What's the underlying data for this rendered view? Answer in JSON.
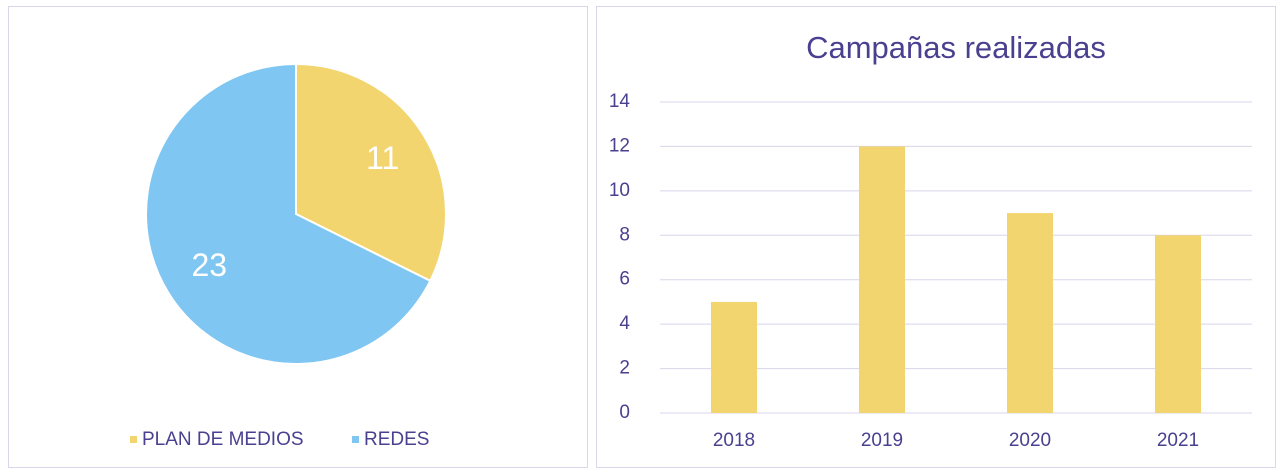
{
  "chart_data": [
    {
      "type": "pie",
      "categories": [
        "PLAN DE MEDIOS",
        "REDES"
      ],
      "values": [
        11,
        23
      ],
      "colors": [
        "#f2d56e",
        "#7fc6f2"
      ]
    },
    {
      "type": "bar",
      "title": "Campañas realizadas",
      "categories": [
        "2018",
        "2019",
        "2020",
        "2021"
      ],
      "values": [
        5,
        12,
        9,
        8
      ],
      "color": "#f2d56e",
      "ylim": [
        0,
        14
      ],
      "yticks": [
        0,
        2,
        4,
        6,
        8,
        10,
        12,
        14
      ],
      "grid": true
    }
  ]
}
